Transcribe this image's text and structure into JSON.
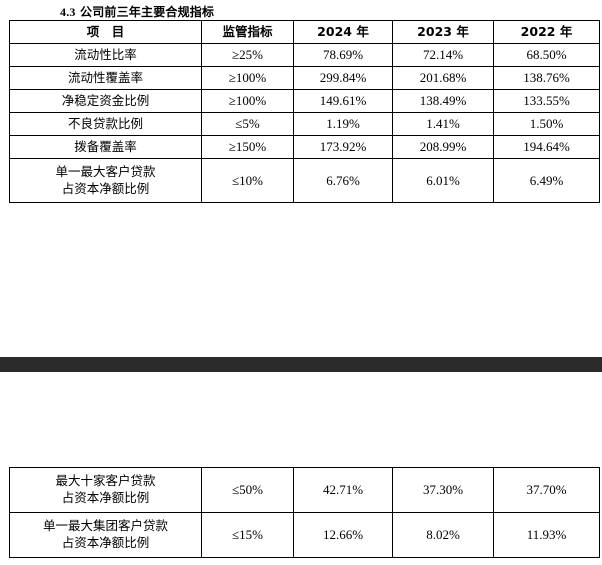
{
  "section_title": {
    "number": "4.3",
    "text": "公司前三年主要合规指标"
  },
  "headers": [
    "项　目",
    "监管指标",
    "2024 年",
    "2023 年",
    "2022 年"
  ],
  "rows_top": [
    {
      "item": "流动性比率",
      "standard": "≥25%",
      "y2024": "78.69%",
      "y2023": "72.14%",
      "y2022": "68.50%"
    },
    {
      "item": "流动性覆盖率",
      "standard": "≥100%",
      "y2024": "299.84%",
      "y2023": "201.68%",
      "y2022": "138.76%"
    },
    {
      "item": "净稳定资金比例",
      "standard": "≥100%",
      "y2024": "149.61%",
      "y2023": "138.49%",
      "y2022": "133.55%"
    },
    {
      "item": "不良贷款比例",
      "standard": "≤5%",
      "y2024": "1.19%",
      "y2023": "1.41%",
      "y2022": "1.50%"
    },
    {
      "item": "拨备覆盖率",
      "standard": "≥150%",
      "y2024": "173.92%",
      "y2023": "208.99%",
      "y2022": "194.64%"
    },
    {
      "item_line1": "单一最大客户贷款",
      "item_line2": "占资本净额比例",
      "standard": "≤10%",
      "y2024": "6.76%",
      "y2023": "6.01%",
      "y2022": "6.49%"
    }
  ],
  "rows_bottom": [
    {
      "item_line1": "最大十家客户贷款",
      "item_line2": "占资本净额比例",
      "standard": "≤50%",
      "y2024": "42.71%",
      "y2023": "37.30%",
      "y2022": "37.70%"
    },
    {
      "item_line1": "单一最大集团客户贷款",
      "item_line2": "占资本净额比例",
      "standard": "≤15%",
      "y2024": "12.66%",
      "y2023": "8.02%",
      "y2022": "11.93%"
    }
  ]
}
